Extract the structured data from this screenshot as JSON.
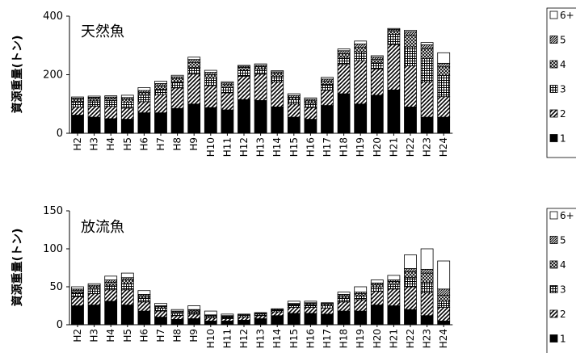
{
  "chart_data": [
    {
      "type": "bar",
      "stacked": true,
      "title": "天然魚",
      "ylabel": "資源重量(トン)",
      "ylim": [
        0,
        400
      ],
      "yticks": [
        0,
        200,
        400
      ],
      "categories": [
        "H2",
        "H3",
        "H4",
        "H5",
        "H6",
        "H7",
        "H8",
        "H9",
        "H10",
        "H11",
        "H12",
        "H13",
        "H14",
        "H15",
        "H16",
        "H17",
        "H18",
        "H19",
        "H20",
        "H21",
        "H22",
        "H23",
        "H24"
      ],
      "series": [
        {
          "name": "1",
          "pattern": "solid",
          "values": [
            62,
            55,
            50,
            48,
            70,
            70,
            85,
            100,
            88,
            80,
            115,
            112,
            90,
            55,
            48,
            95,
            135,
            100,
            130,
            148,
            90,
            55,
            55
          ]
        },
        {
          "name": "2",
          "pattern": "diag-coarse",
          "values": [
            28,
            38,
            42,
            38,
            38,
            62,
            70,
            102,
            75,
            58,
            80,
            90,
            85,
            45,
            40,
            52,
            100,
            148,
            90,
            155,
            140,
            120,
            70
          ]
        },
        {
          "name": "3",
          "pattern": "grid",
          "values": [
            18,
            18,
            20,
            20,
            22,
            18,
            20,
            22,
            25,
            18,
            20,
            18,
            20,
            15,
            15,
            20,
            25,
            30,
            20,
            35,
            65,
            80,
            72
          ]
        },
        {
          "name": "4",
          "pattern": "crosshatch",
          "values": [
            8,
            8,
            8,
            10,
            10,
            12,
            12,
            18,
            12,
            10,
            10,
            8,
            10,
            8,
            8,
            10,
            12,
            15,
            12,
            12,
            40,
            35,
            30
          ]
        },
        {
          "name": "5",
          "pattern": "diag-dense",
          "values": [
            4,
            4,
            4,
            6,
            6,
            8,
            6,
            10,
            8,
            6,
            4,
            4,
            5,
            6,
            5,
            8,
            10,
            12,
            8,
            5,
            12,
            12,
            12
          ]
        },
        {
          "name": "6+",
          "pattern": "white",
          "values": [
            4,
            4,
            4,
            8,
            10,
            8,
            5,
            8,
            7,
            4,
            3,
            5,
            4,
            6,
            5,
            6,
            6,
            10,
            5,
            3,
            5,
            8,
            36
          ]
        }
      ],
      "legend": [
        "6+",
        "5",
        "4",
        "3",
        "2",
        "1"
      ],
      "legend_position": "right",
      "grid": false
    },
    {
      "type": "bar",
      "stacked": true,
      "title": "放流魚",
      "ylabel": "資源重量(トン)",
      "ylim": [
        0,
        150
      ],
      "yticks": [
        0,
        50,
        100,
        150
      ],
      "categories": [
        "H2",
        "H3",
        "H4",
        "H5",
        "H6",
        "H7",
        "H8",
        "H9",
        "H10",
        "H11",
        "H12",
        "H13",
        "H14",
        "H15",
        "H16",
        "H17",
        "H18",
        "H19",
        "H20",
        "H21",
        "H22",
        "H23",
        "H24"
      ],
      "series": [
        {
          "name": "1",
          "pattern": "solid",
          "values": [
            25,
            26,
            31,
            26,
            18,
            10,
            7,
            8,
            5,
            5,
            6,
            8,
            12,
            15,
            15,
            14,
            18,
            18,
            26,
            25,
            20,
            12,
            5
          ]
        },
        {
          "name": "2",
          "pattern": "diag-coarse",
          "values": [
            12,
            15,
            15,
            20,
            12,
            8,
            5,
            6,
            4,
            3,
            4,
            4,
            5,
            8,
            8,
            8,
            12,
            15,
            18,
            22,
            30,
            30,
            18
          ]
        },
        {
          "name": "3",
          "pattern": "grid",
          "values": [
            5,
            6,
            6,
            8,
            5,
            4,
            3,
            3,
            2,
            2,
            2,
            2,
            2,
            3,
            3,
            3,
            5,
            5,
            6,
            6,
            12,
            14,
            8
          ]
        },
        {
          "name": "4",
          "pattern": "crosshatch",
          "values": [
            3,
            3,
            4,
            5,
            3,
            2,
            2,
            2,
            1,
            1,
            1,
            1,
            1,
            1,
            2,
            2,
            3,
            3,
            3,
            4,
            8,
            12,
            8
          ]
        },
        {
          "name": "5",
          "pattern": "diag-dense",
          "values": [
            2,
            2,
            3,
            3,
            2,
            1,
            1,
            1,
            1,
            1,
            1,
            1,
            1,
            1,
            1,
            1,
            2,
            2,
            2,
            2,
            4,
            5,
            8
          ]
        },
        {
          "name": "6+",
          "pattern": "white",
          "values": [
            3,
            2,
            5,
            6,
            5,
            3,
            2,
            5,
            5,
            2,
            0,
            0,
            0,
            3,
            2,
            1,
            3,
            7,
            4,
            6,
            18,
            27,
            37
          ]
        }
      ],
      "legend": [
        "6+",
        "5",
        "4",
        "3",
        "2",
        "1"
      ],
      "legend_position": "right",
      "grid": false
    }
  ]
}
